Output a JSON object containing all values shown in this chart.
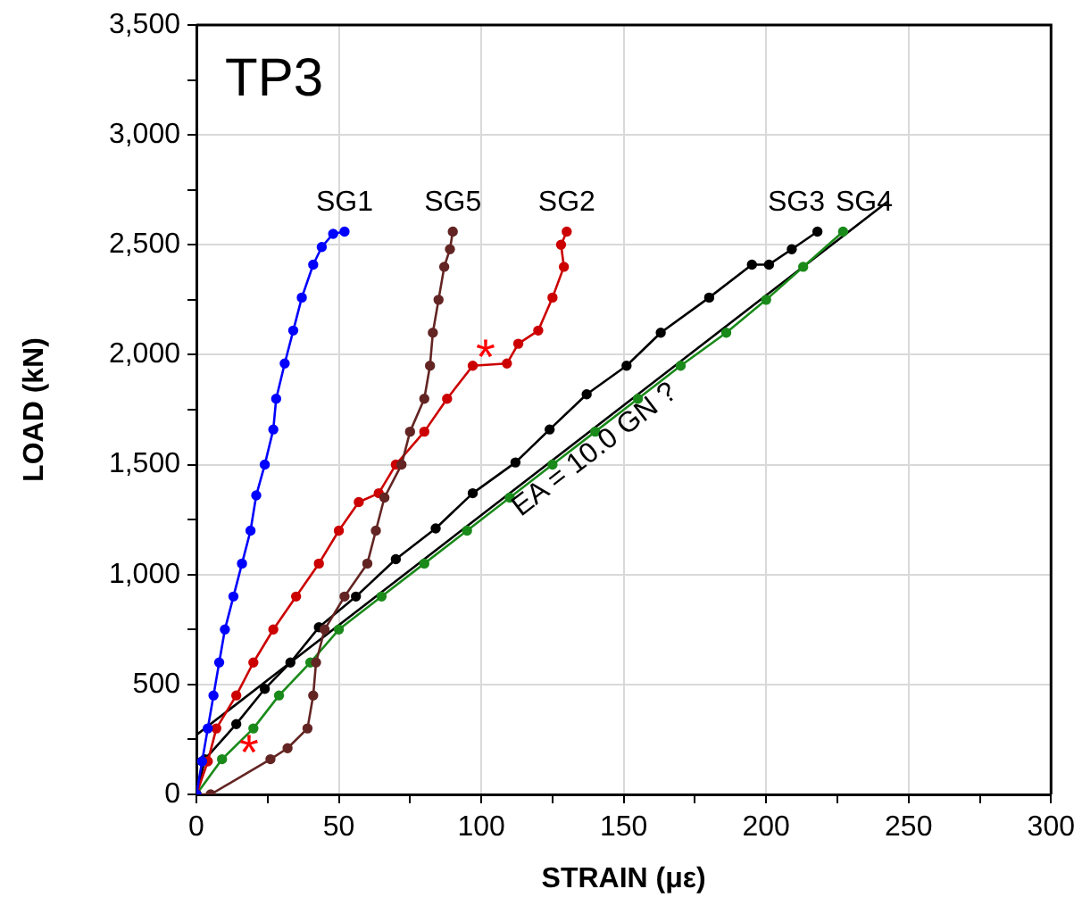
{
  "chart_data": {
    "type": "line",
    "title": "TP3",
    "xlabel": "STRAIN (με)",
    "ylabel": "LOAD (kN)",
    "xlim": [
      0,
      300
    ],
    "xticks": [
      0,
      {
        "value": 25,
        "label": null
      },
      50,
      {
        "value": 75,
        "label": null
      },
      100,
      {
        "value": 125,
        "label": null
      },
      150,
      {
        "value": 175,
        "label": null
      },
      200,
      {
        "value": 225,
        "label": null
      },
      250,
      {
        "value": 275,
        "label": null
      },
      300
    ],
    "ylim": [
      0,
      3500
    ],
    "yticks": [
      {
        "value": 0,
        "label": "0"
      },
      {
        "value": 250,
        "label": null
      },
      {
        "value": 500,
        "label": "500"
      },
      {
        "value": 750,
        "label": null
      },
      {
        "value": 1000,
        "label": "1,000"
      },
      {
        "value": 1250,
        "label": null
      },
      {
        "value": 1500,
        "label": "1,500"
      },
      {
        "value": 1750,
        "label": null
      },
      {
        "value": 2000,
        "label": "2,000"
      },
      {
        "value": 2250,
        "label": null
      },
      {
        "value": 2500,
        "label": "2,500"
      },
      {
        "value": 2750,
        "label": null
      },
      {
        "value": 3000,
        "label": "3,000"
      },
      {
        "value": 3250,
        "label": null
      },
      {
        "value": 3500,
        "label": "3,500"
      }
    ],
    "grid": true,
    "legend": false,
    "marker": "circle",
    "line_style": "solid",
    "series": [
      {
        "name": "SG1",
        "color": "#0000ff",
        "x": [
          0,
          2,
          4,
          6,
          8,
          10,
          13,
          16,
          19,
          21,
          24,
          27,
          28,
          31,
          34,
          37,
          41,
          44,
          48,
          52
        ],
        "values": [
          0,
          150,
          300,
          450,
          600,
          750,
          900,
          1050,
          1200,
          1360,
          1500,
          1660,
          1800,
          1960,
          2110,
          2260,
          2410,
          2490,
          2550,
          2560
        ]
      },
      {
        "name": "SG5",
        "color": "#632523",
        "x": [
          0,
          5,
          26,
          32,
          39,
          41,
          42,
          45,
          52,
          60,
          63,
          66,
          72,
          75,
          80,
          82,
          83,
          85,
          87,
          89,
          90
        ],
        "values": [
          0,
          0,
          160,
          210,
          300,
          450,
          600,
          750,
          900,
          1050,
          1200,
          1350,
          1500,
          1650,
          1800,
          1950,
          2100,
          2250,
          2400,
          2480,
          2560
        ]
      },
      {
        "name": "SG2",
        "color": "#cc0000",
        "x": [
          0,
          4,
          7,
          14,
          20,
          27,
          35,
          43,
          50,
          57,
          64,
          70,
          80,
          88,
          97,
          109,
          113,
          120,
          125,
          129,
          128,
          130
        ],
        "values": [
          0,
          150,
          300,
          450,
          600,
          750,
          900,
          1050,
          1200,
          1330,
          1370,
          1500,
          1650,
          1800,
          1950,
          1960,
          2050,
          2110,
          2260,
          2400,
          2500,
          2560
        ]
      },
      {
        "name": "SG3",
        "color": "#000000",
        "x": [
          0,
          3,
          14,
          24,
          33,
          43,
          56,
          70,
          84,
          97,
          112,
          124,
          137,
          151,
          163,
          180,
          195,
          201,
          209,
          218
        ],
        "values": [
          0,
          160,
          320,
          480,
          600,
          760,
          900,
          1070,
          1210,
          1370,
          1510,
          1660,
          1820,
          1950,
          2100,
          2260,
          2410,
          2410,
          2480,
          2560
        ]
      },
      {
        "name": "SG4",
        "color": "#1a8a1a",
        "x": [
          0,
          9,
          20,
          29,
          40,
          50,
          65,
          80,
          95,
          110,
          125,
          140,
          155,
          170,
          186,
          200,
          213,
          227
        ],
        "values": [
          0,
          160,
          300,
          450,
          600,
          750,
          900,
          1050,
          1200,
          1350,
          1500,
          1650,
          1800,
          1950,
          2100,
          2250,
          2400,
          2560
        ]
      },
      {
        "name": "EA = 10.0 GN ?",
        "type": "line",
        "marker": "none",
        "color": "#000000",
        "x": [
          0,
          243
        ],
        "values": [
          270,
          2700
        ]
      }
    ],
    "annotations": [
      {
        "text": "*",
        "x": 109,
        "y": 1960
      },
      {
        "text": "*",
        "x": 26,
        "y": 160
      }
    ]
  }
}
